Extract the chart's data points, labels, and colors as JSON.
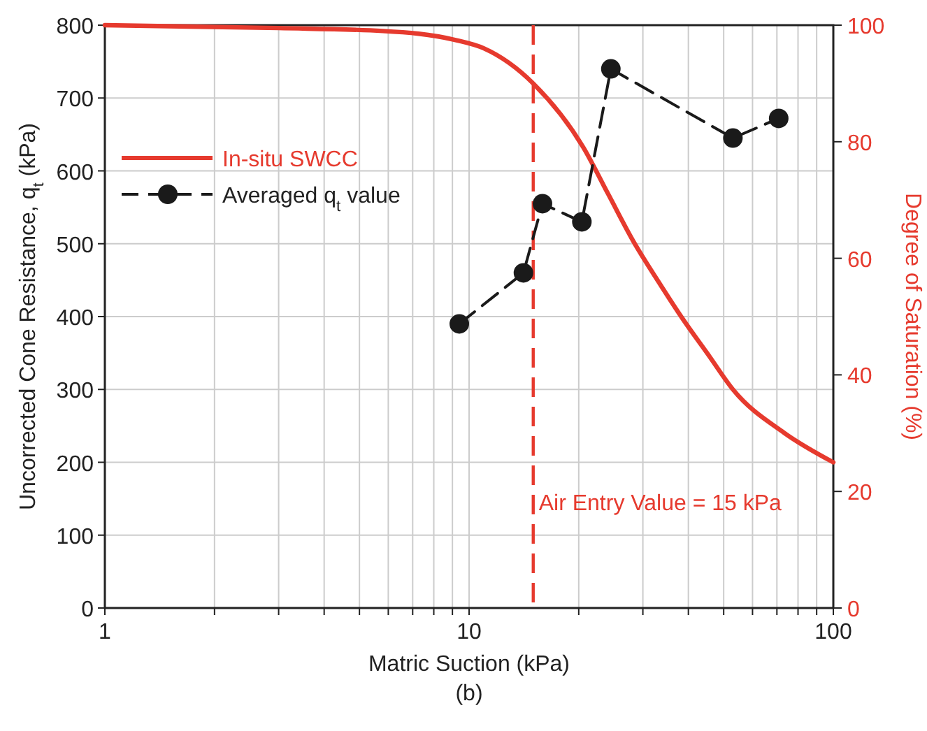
{
  "chart_data": {
    "type": "line",
    "xlabel": "Matric Suction (kPa)",
    "ylabel": "Uncorrected Cone Resistance, q$_{t}$ (kPa)",
    "y2label": "Degree of Saturation (%)",
    "log": "x",
    "xlim": [
      1,
      100
    ],
    "xticks": [
      1,
      {
        "value": 2,
        "label": null
      },
      {
        "value": 3,
        "label": null
      },
      {
        "value": 4,
        "label": null
      },
      {
        "value": 5,
        "label": null
      },
      {
        "value": 6,
        "label": null
      },
      {
        "value": 7,
        "label": null
      },
      {
        "value": 8,
        "label": null
      },
      {
        "value": 9,
        "label": null
      },
      10,
      {
        "value": 20,
        "label": null
      },
      {
        "value": 30,
        "label": null
      },
      {
        "value": 40,
        "label": null
      },
      {
        "value": 50,
        "label": null
      },
      {
        "value": 60,
        "label": null
      },
      {
        "value": 70,
        "label": null
      },
      {
        "value": 80,
        "label": null
      },
      {
        "value": 90,
        "label": null
      },
      100
    ],
    "ylim": [
      0,
      800
    ],
    "yticks": [
      0,
      100,
      200,
      300,
      400,
      500,
      600,
      700,
      800
    ],
    "y2lim": [
      0,
      100
    ],
    "y2ticks": [
      0,
      20,
      40,
      60,
      80,
      100
    ],
    "grid": true,
    "legend": "top left",
    "series": [
      {
        "name": "In-situ SWCC",
        "color": "#e63a2e",
        "axis": "y2",
        "line_style": "solid",
        "marker": "none",
        "x": [
          1,
          3,
          5.8,
          9.1,
          11,
          15,
          20.6,
          24.1,
          28.2,
          33.1,
          38.7,
          45.3,
          53,
          73.5,
          100
        ],
        "values": [
          100,
          99.5,
          99,
          97.5,
          96,
          90,
          79,
          71,
          63,
          56,
          49.5,
          43.5,
          37.5,
          30,
          25
        ]
      },
      {
        "name": "Averaged q$_{t}$ value",
        "color": "#1a1a1a",
        "line_style": "dashed",
        "marker": "circle",
        "x": [
          9.4,
          14.1,
          15.9,
          20.4,
          24.5,
          53,
          70.8
        ],
        "values": [
          390,
          460,
          555,
          530,
          740,
          645,
          672
        ]
      }
    ],
    "ref_lines": [
      {
        "axis": "x",
        "value": 15,
        "label": "Air Entry Value = 15 kPa",
        "color": "#e63a2e",
        "line_style": "dashed"
      }
    ],
    "annotations": [
      "(b)"
    ]
  }
}
